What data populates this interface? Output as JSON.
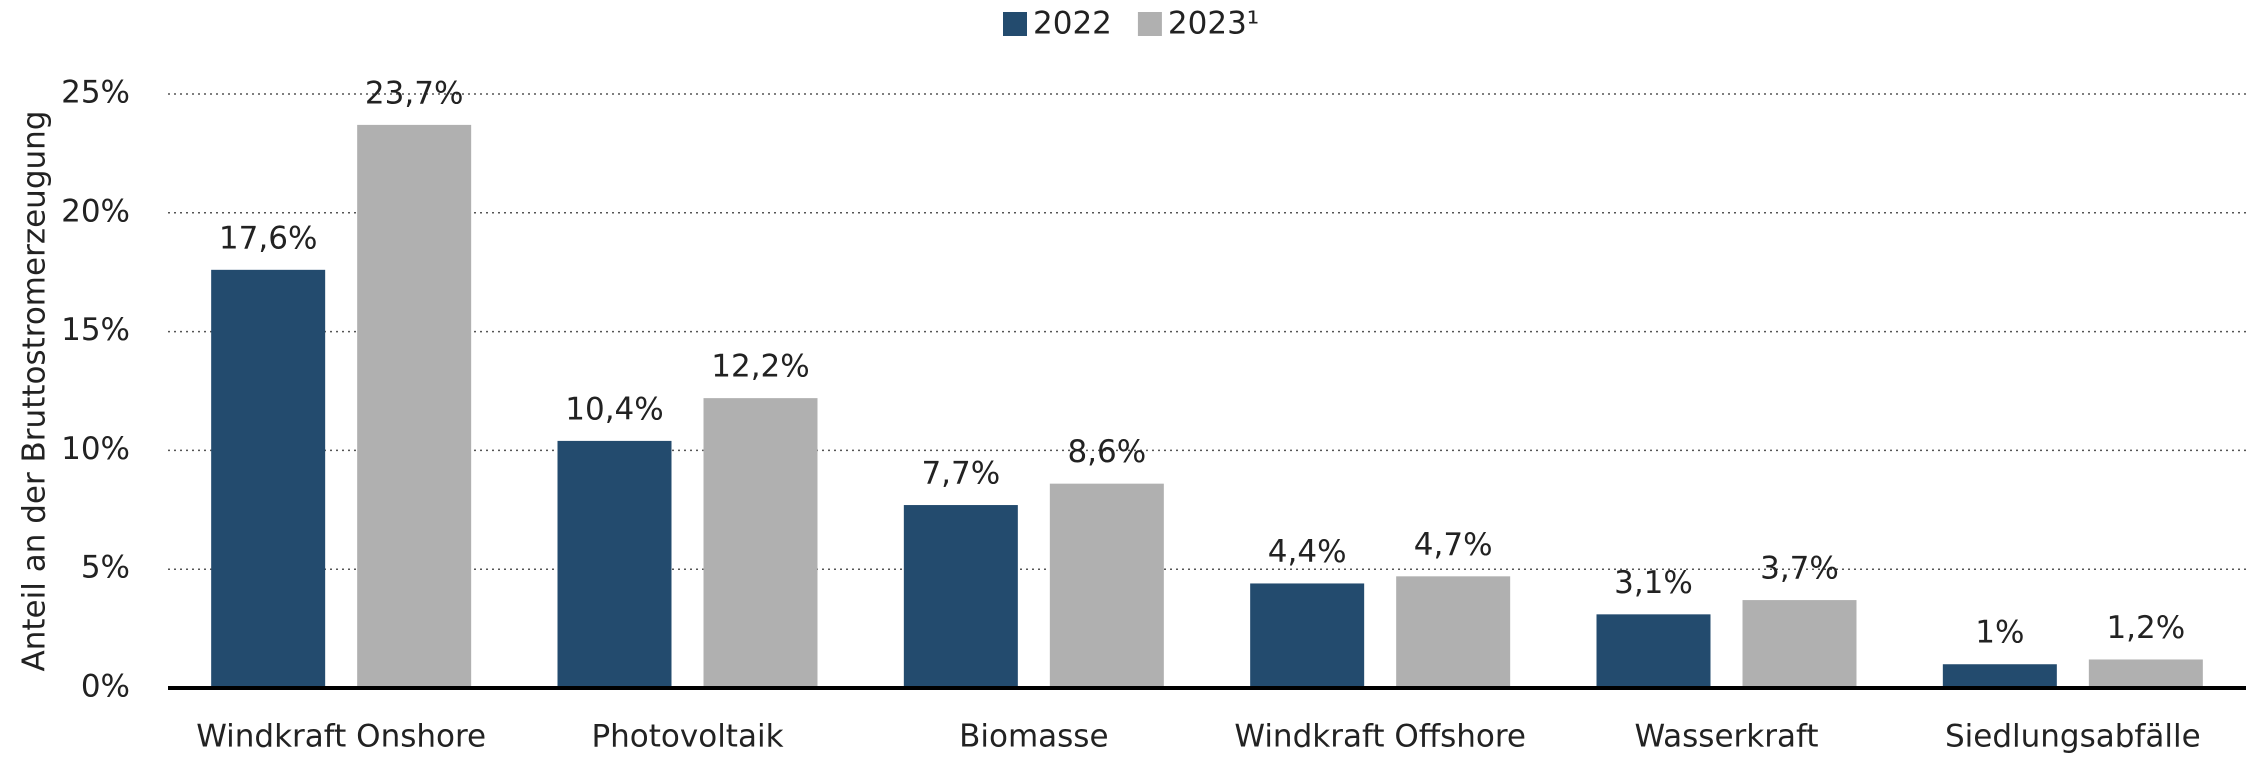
{
  "chart_data": {
    "type": "bar",
    "categories": [
      "Windkraft Onshore",
      "Photovoltaik",
      "Biomasse",
      "Windkraft Offshore",
      "Wasserkraft",
      "Siedlungsabfälle"
    ],
    "series": [
      {
        "name": "2022",
        "color": "#234b6e",
        "values": [
          17.6,
          10.4,
          7.7,
          4.4,
          3.1,
          1
        ],
        "value_labels": [
          "17,6%",
          "10,4%",
          "7,7%",
          "4,4%",
          "3,1%",
          "1%"
        ]
      },
      {
        "name": "2023¹",
        "color": "#b0b0b0",
        "values": [
          23.7,
          12.2,
          8.6,
          4.7,
          3.7,
          1.2
        ],
        "value_labels": [
          "23,7%",
          "12,2%",
          "8,6%",
          "4,7%",
          "3,7%",
          "1,2%"
        ]
      }
    ],
    "y_label": "Anteil an der Bruttostromerzeugung",
    "ylim": [
      0,
      25
    ],
    "yticks": [
      {
        "value": 0,
        "label": "0%"
      },
      {
        "value": 5,
        "label": "5%"
      },
      {
        "value": 10,
        "label": "10%"
      },
      {
        "value": 15,
        "label": "15%"
      },
      {
        "value": 20,
        "label": "20%"
      },
      {
        "value": 25,
        "label": "25%"
      }
    ],
    "grid": true,
    "legend": "top"
  }
}
